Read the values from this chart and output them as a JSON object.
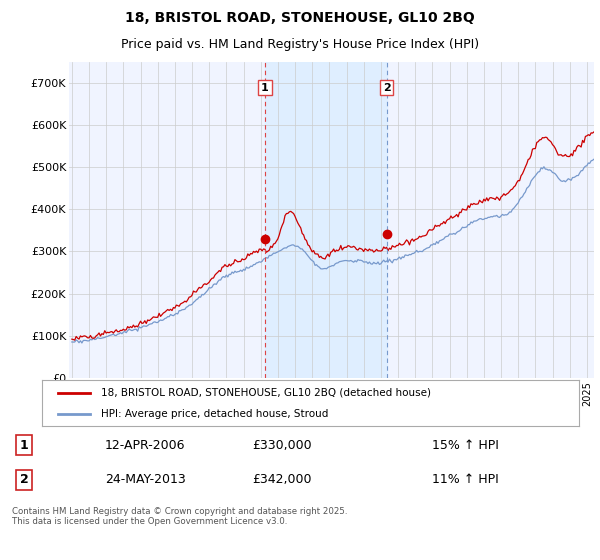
{
  "title_line1": "18, BRISTOL ROAD, STONEHOUSE, GL10 2BQ",
  "title_line2": "Price paid vs. HM Land Registry's House Price Index (HPI)",
  "background_color": "#ffffff",
  "plot_bg_color": "#f0f4ff",
  "grid_color": "#cccccc",
  "red_line_color": "#cc0000",
  "blue_line_color": "#7799cc",
  "shade_color": "#ddeeff",
  "vline1_color": "#dd4444",
  "vline2_color": "#7799cc",
  "marker_fill": "#cc0000",
  "ylim": [
    0,
    750000
  ],
  "yticks": [
    0,
    100000,
    200000,
    300000,
    400000,
    500000,
    600000,
    700000
  ],
  "ytick_labels": [
    "£0",
    "£100K",
    "£200K",
    "£300K",
    "£400K",
    "£500K",
    "£600K",
    "£700K"
  ],
  "legend_label1": "18, BRISTOL ROAD, STONEHOUSE, GL10 2BQ (detached house)",
  "legend_label2": "HPI: Average price, detached house, Stroud",
  "footer": "Contains HM Land Registry data © Crown copyright and database right 2025.\nThis data is licensed under the Open Government Licence v3.0.",
  "sale1_date_str": "12-APR-2006",
  "sale1_price_str": "£330,000",
  "sale1_hpi": "15% ↑ HPI",
  "sale2_date_str": "24-MAY-2013",
  "sale2_price_str": "£342,000",
  "sale2_hpi": "11% ↑ HPI",
  "title_fontsize": 10,
  "subtitle_fontsize": 9
}
